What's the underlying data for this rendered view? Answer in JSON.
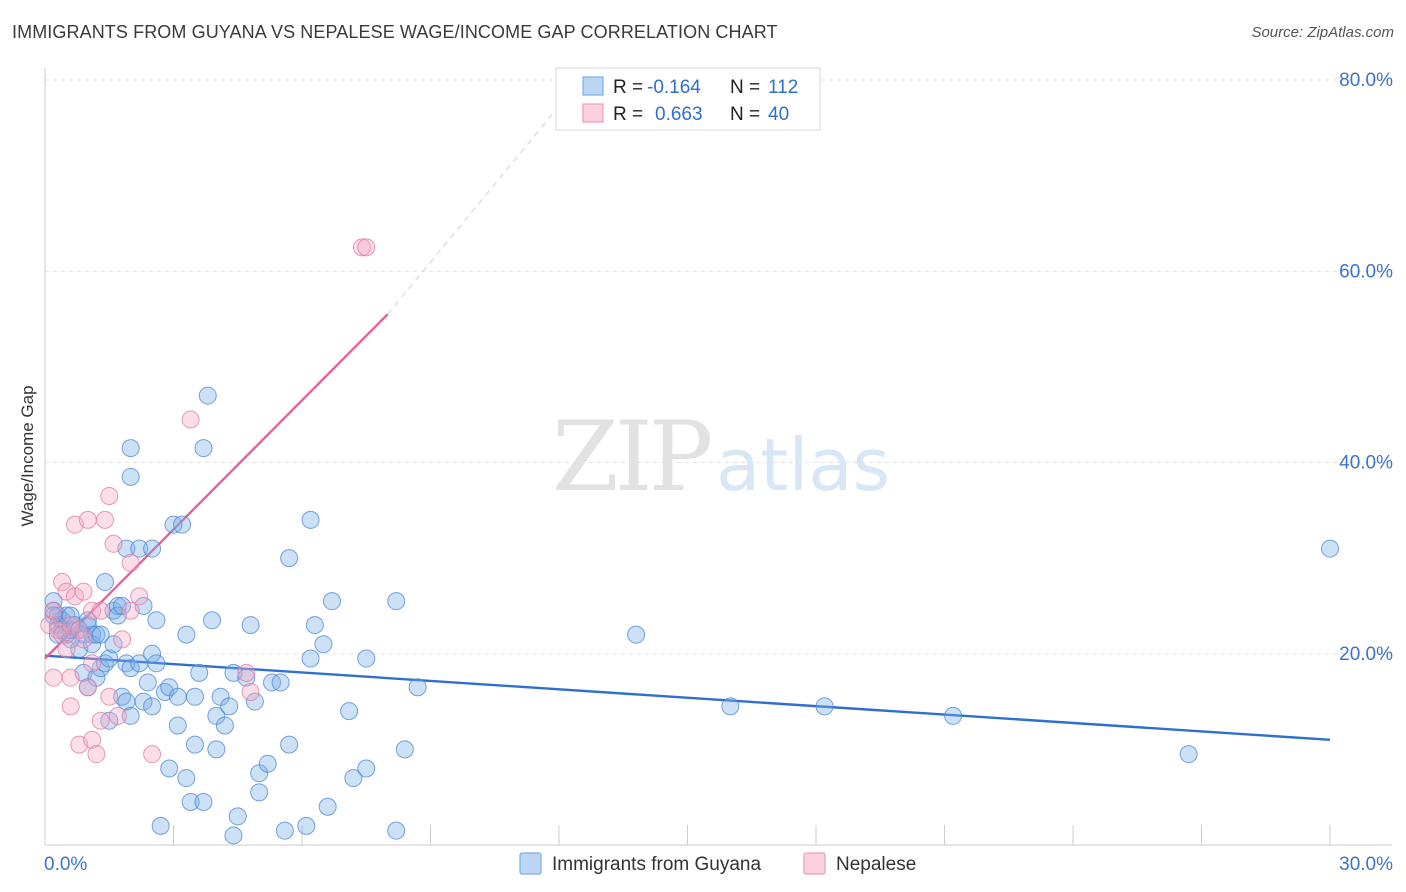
{
  "header": {
    "title": "IMMIGRANTS FROM GUYANA VS NEPALESE WAGE/INCOME GAP CORRELATION CHART",
    "source": "Source: ZipAtlas.com"
  },
  "watermark": {
    "zip": "ZIP",
    "atlas": "atlas"
  },
  "legend_top": {
    "rows": [
      {
        "r_label": "R =",
        "r_value": "-0.164",
        "n_label": "N =",
        "n_value": "112",
        "color": "#7aaee8"
      },
      {
        "r_label": "R =",
        "r_value": "0.663",
        "n_label": "N =",
        "n_value": "40",
        "color": "#f09ab8"
      }
    ]
  },
  "chart_data": {
    "type": "scatter",
    "title": "IMMIGRANTS FROM GUYANA VS NEPALESE WAGE/INCOME GAP CORRELATION CHART",
    "xlabel": "",
    "ylabel": "Wage/Income Gap",
    "xlim": [
      0,
      30
    ],
    "ylim": [
      0,
      80
    ],
    "x_tick_labels": [
      {
        "value": 0,
        "label": "0.0%"
      },
      {
        "value": 30,
        "label": "30.0%"
      }
    ],
    "y_tick_labels": [
      {
        "value": 20,
        "label": "20.0%"
      },
      {
        "value": 40,
        "label": "40.0%"
      },
      {
        "value": 60,
        "label": "60.0%"
      },
      {
        "value": 80,
        "label": "80.0%"
      }
    ],
    "grid": true,
    "legend_position": "bottom",
    "series": [
      {
        "name": "Immigrants from Guyana",
        "color": "#7aaee8",
        "stroke": "#4a86d8",
        "trend": {
          "x": [
            0,
            30
          ],
          "y": [
            19.8,
            11.0
          ],
          "color": "#2f6fcf"
        },
        "points": [
          [
            0.2,
            25.5
          ],
          [
            0.2,
            24.5
          ],
          [
            0.3,
            24.0
          ],
          [
            0.3,
            23.0
          ],
          [
            0.4,
            22.5
          ],
          [
            0.4,
            23.5
          ],
          [
            0.5,
            24.0
          ],
          [
            0.5,
            22.0
          ],
          [
            0.6,
            22.5
          ],
          [
            0.6,
            24.0
          ],
          [
            0.7,
            23.0
          ],
          [
            0.8,
            22.5
          ],
          [
            0.8,
            20.5
          ],
          [
            0.9,
            22.0
          ],
          [
            0.9,
            18.0
          ],
          [
            1.0,
            23.0
          ],
          [
            1.0,
            16.5
          ],
          [
            1.1,
            22.0
          ],
          [
            1.1,
            21.0
          ],
          [
            1.2,
            22.0
          ],
          [
            1.2,
            17.5
          ],
          [
            1.3,
            22.0
          ],
          [
            1.3,
            18.5
          ],
          [
            1.4,
            19.0
          ],
          [
            1.4,
            27.5
          ],
          [
            1.5,
            19.5
          ],
          [
            1.5,
            13.0
          ],
          [
            1.6,
            24.5
          ],
          [
            1.6,
            21.0
          ],
          [
            1.7,
            25.0
          ],
          [
            1.7,
            24.0
          ],
          [
            1.8,
            25.0
          ],
          [
            1.8,
            15.5
          ],
          [
            1.9,
            19.0
          ],
          [
            1.9,
            31.0
          ],
          [
            1.9,
            15.0
          ],
          [
            2.0,
            18.5
          ],
          [
            2.0,
            13.5
          ],
          [
            2.0,
            41.5
          ],
          [
            2.0,
            38.5
          ],
          [
            2.2,
            19.0
          ],
          [
            2.2,
            31.0
          ],
          [
            2.3,
            15.0
          ],
          [
            2.3,
            25.0
          ],
          [
            2.4,
            17.0
          ],
          [
            2.5,
            31.0
          ],
          [
            2.5,
            14.5
          ],
          [
            2.5,
            20.0
          ],
          [
            2.6,
            19.0
          ],
          [
            2.6,
            23.5
          ],
          [
            2.7,
            2.0
          ],
          [
            2.8,
            16.0
          ],
          [
            2.9,
            16.5
          ],
          [
            2.9,
            8.0
          ],
          [
            3.0,
            33.5
          ],
          [
            3.1,
            12.5
          ],
          [
            3.1,
            15.5
          ],
          [
            3.2,
            33.5
          ],
          [
            3.3,
            7.0
          ],
          [
            3.3,
            22.0
          ],
          [
            3.4,
            4.5
          ],
          [
            3.5,
            10.5
          ],
          [
            3.5,
            15.5
          ],
          [
            3.6,
            18.0
          ],
          [
            3.7,
            4.5
          ],
          [
            3.7,
            41.5
          ],
          [
            3.8,
            47.0
          ],
          [
            3.9,
            23.5
          ],
          [
            4.0,
            13.5
          ],
          [
            4.0,
            10.0
          ],
          [
            4.1,
            15.5
          ],
          [
            4.2,
            12.5
          ],
          [
            4.3,
            14.5
          ],
          [
            4.4,
            1.0
          ],
          [
            4.4,
            18.0
          ],
          [
            4.5,
            3.0
          ],
          [
            4.7,
            17.5
          ],
          [
            4.8,
            23.0
          ],
          [
            4.9,
            15.0
          ],
          [
            5.0,
            5.5
          ],
          [
            5.0,
            7.5
          ],
          [
            5.2,
            8.5
          ],
          [
            5.3,
            17.0
          ],
          [
            5.5,
            17.0
          ],
          [
            5.6,
            1.5
          ],
          [
            5.7,
            30.0
          ],
          [
            5.7,
            10.5
          ],
          [
            6.1,
            2.0
          ],
          [
            6.2,
            34.0
          ],
          [
            6.2,
            19.5
          ],
          [
            6.3,
            23.0
          ],
          [
            6.5,
            21.0
          ],
          [
            6.6,
            4.0
          ],
          [
            6.7,
            25.5
          ],
          [
            7.1,
            14.0
          ],
          [
            7.2,
            7.0
          ],
          [
            7.5,
            8.0
          ],
          [
            7.5,
            19.5
          ],
          [
            8.2,
            1.5
          ],
          [
            8.2,
            25.5
          ],
          [
            8.4,
            10.0
          ],
          [
            8.7,
            16.5
          ],
          [
            13.8,
            22.0
          ],
          [
            16.0,
            14.5
          ],
          [
            18.2,
            14.5
          ],
          [
            21.2,
            13.5
          ],
          [
            26.7,
            9.5
          ],
          [
            30.0,
            31.0
          ],
          [
            0.2,
            24.0
          ],
          [
            0.3,
            22.0
          ],
          [
            0.6,
            21.5
          ],
          [
            1.0,
            23.5
          ]
        ]
      },
      {
        "name": "Nepalese",
        "color": "#f4a8c2",
        "stroke": "#e07a9f",
        "trend": {
          "x": [
            0,
            8
          ],
          "y": [
            19.5,
            55.5
          ],
          "color": "#e8609a",
          "extend_to": {
            "x": 12.5,
            "y": 80
          }
        },
        "points": [
          [
            0.1,
            23.0
          ],
          [
            0.2,
            17.5
          ],
          [
            0.2,
            24.5
          ],
          [
            0.3,
            22.5
          ],
          [
            0.4,
            27.5
          ],
          [
            0.4,
            22.0
          ],
          [
            0.5,
            20.5
          ],
          [
            0.5,
            26.5
          ],
          [
            0.6,
            14.5
          ],
          [
            0.6,
            17.5
          ],
          [
            0.6,
            23.0
          ],
          [
            0.7,
            33.5
          ],
          [
            0.7,
            26.0
          ],
          [
            0.8,
            22.5
          ],
          [
            0.8,
            10.5
          ],
          [
            0.9,
            21.5
          ],
          [
            0.9,
            26.5
          ],
          [
            1.0,
            34.0
          ],
          [
            1.0,
            16.5
          ],
          [
            1.1,
            24.5
          ],
          [
            1.1,
            11.0
          ],
          [
            1.1,
            19.0
          ],
          [
            1.2,
            9.5
          ],
          [
            1.3,
            24.5
          ],
          [
            1.3,
            13.0
          ],
          [
            1.4,
            34.0
          ],
          [
            1.5,
            36.5
          ],
          [
            1.5,
            15.5
          ],
          [
            1.6,
            31.5
          ],
          [
            1.7,
            13.5
          ],
          [
            1.8,
            21.5
          ],
          [
            2.0,
            24.5
          ],
          [
            2.0,
            29.5
          ],
          [
            2.2,
            26.0
          ],
          [
            2.5,
            9.5
          ],
          [
            3.4,
            44.5
          ],
          [
            4.7,
            18.0
          ],
          [
            4.8,
            16.0
          ],
          [
            7.4,
            62.5
          ],
          [
            7.5,
            62.5
          ]
        ]
      }
    ]
  },
  "legend_bottom": {
    "items": [
      {
        "label": "Immigrants from Guyana",
        "color": "#7aaee8"
      },
      {
        "label": "Nepalese",
        "color": "#f4a8c2"
      }
    ]
  }
}
